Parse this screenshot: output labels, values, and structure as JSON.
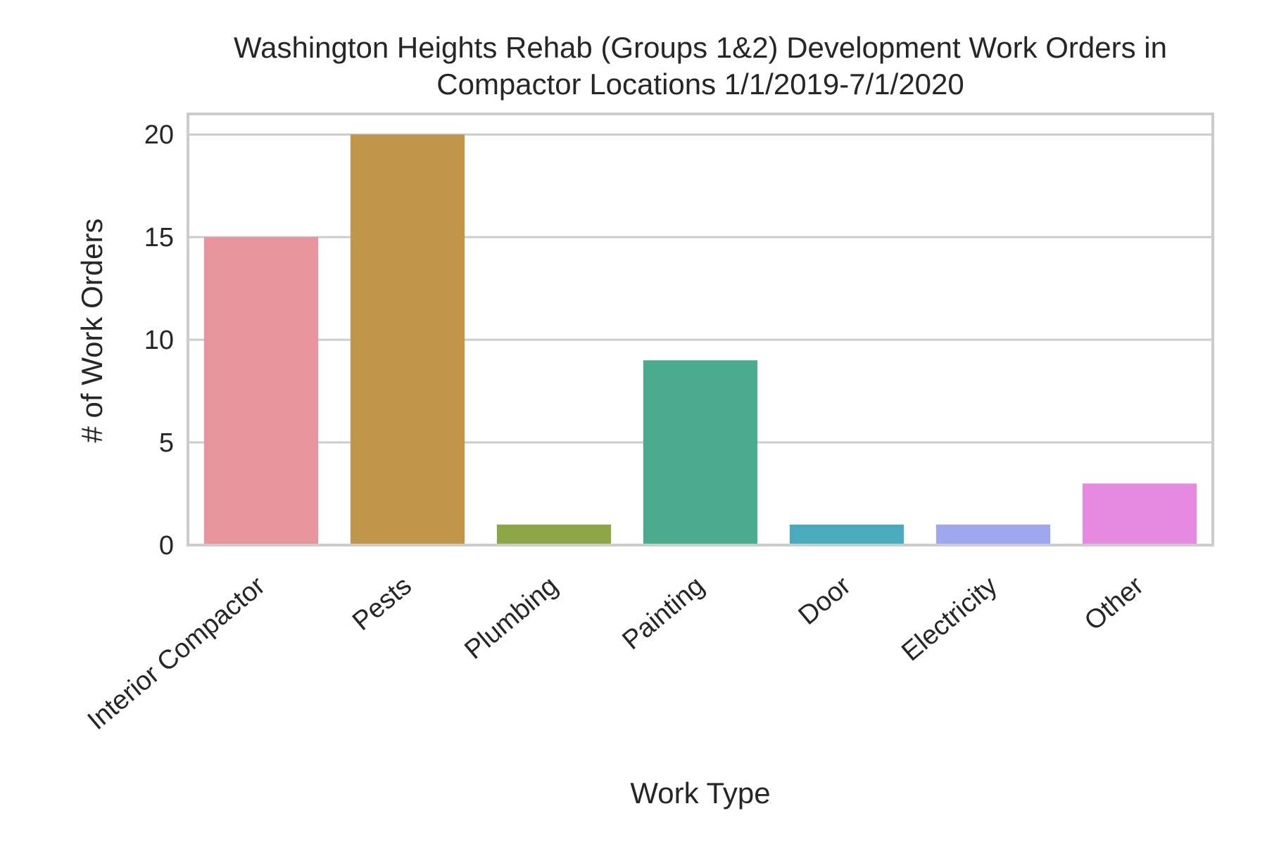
{
  "chart_data": {
    "type": "bar",
    "title_lines": [
      "Washington Heights Rehab (Groups 1&2) Development Work Orders in",
      "Compactor Locations 1/1/2019-7/1/2020"
    ],
    "xlabel": "Work Type",
    "ylabel": "# of Work Orders",
    "categories": [
      "Interior Compactor",
      "Pests",
      "Plumbing",
      "Painting",
      "Door",
      "Electricity",
      "Other"
    ],
    "values": [
      15,
      20,
      1,
      9,
      1,
      1,
      3
    ],
    "colors": [
      "#e8949f",
      "#c0974a",
      "#8ca646",
      "#4aac8c",
      "#4aabbf",
      "#9fa8ef",
      "#e68ae0"
    ],
    "ylim": [
      0,
      21
    ],
    "yticks": [
      0,
      5,
      10,
      15,
      20
    ],
    "grid": true,
    "legend": "none"
  }
}
